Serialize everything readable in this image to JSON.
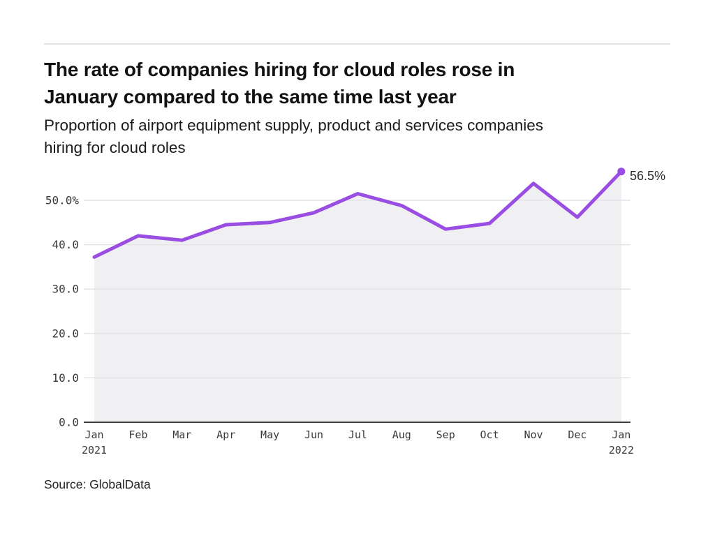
{
  "header": {
    "title_line1": "The rate of companies hiring for cloud roles rose in",
    "title_line2": "January compared to the same time last year",
    "subtitle_line1": "Proportion of airport equipment supply, product and services companies",
    "subtitle_line2": "hiring for cloud roles"
  },
  "chart_data": {
    "type": "area",
    "title": "The rate of companies hiring for cloud roles rose in January compared to the same time last year",
    "subtitle": "Proportion of airport equipment supply, product and services companies hiring for cloud roles",
    "categories": [
      {
        "month": "Jan",
        "year": "2021"
      },
      {
        "month": "Feb"
      },
      {
        "month": "Mar"
      },
      {
        "month": "Apr"
      },
      {
        "month": "May"
      },
      {
        "month": "Jun"
      },
      {
        "month": "Jul"
      },
      {
        "month": "Aug"
      },
      {
        "month": "Sep"
      },
      {
        "month": "Oct"
      },
      {
        "month": "Nov"
      },
      {
        "month": "Dec"
      },
      {
        "month": "Jan",
        "year": "2022"
      }
    ],
    "values": [
      37.2,
      42.0,
      41.0,
      44.5,
      45.0,
      47.2,
      51.5,
      48.8,
      43.5,
      44.8,
      53.8,
      46.2,
      56.5
    ],
    "unit": "%",
    "end_label": "56.5%",
    "y_ticks": [
      0,
      10,
      20,
      30,
      40,
      50
    ],
    "y_tick_labels": [
      "0.0",
      "10.0",
      "20.0",
      "30.0",
      "40.0",
      "50.0%"
    ],
    "ylim": [
      0,
      57
    ],
    "grid": "horizontal",
    "legend": "none",
    "colors": {
      "line": "#9A4DE2",
      "marker": "#9A4DE2",
      "fill": "#F0EFF1",
      "gridline": "#E4E4E7",
      "axis": "#3A3A3A",
      "tick_text": "#3A3A3A",
      "annotation": "#2B2B2B"
    }
  },
  "footer": {
    "source": "Source: GlobalData"
  }
}
